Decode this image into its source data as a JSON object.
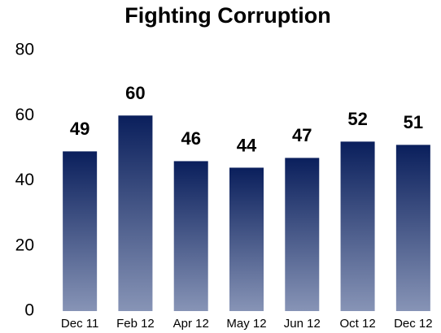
{
  "chart_data": {
    "type": "bar",
    "title": "Fighting Corruption",
    "categories": [
      "Dec 11",
      "Feb 12",
      "Apr 12",
      "May 12",
      "Jun 12",
      "Oct 12",
      "Dec 12"
    ],
    "values": [
      49,
      60,
      46,
      44,
      47,
      52,
      51
    ],
    "gradient": [
      "#0a1f5c",
      "#8794b6"
    ],
    "ylim": [
      0,
      80
    ],
    "yticks": [
      0,
      20,
      40,
      60,
      80
    ],
    "grid": false
  }
}
